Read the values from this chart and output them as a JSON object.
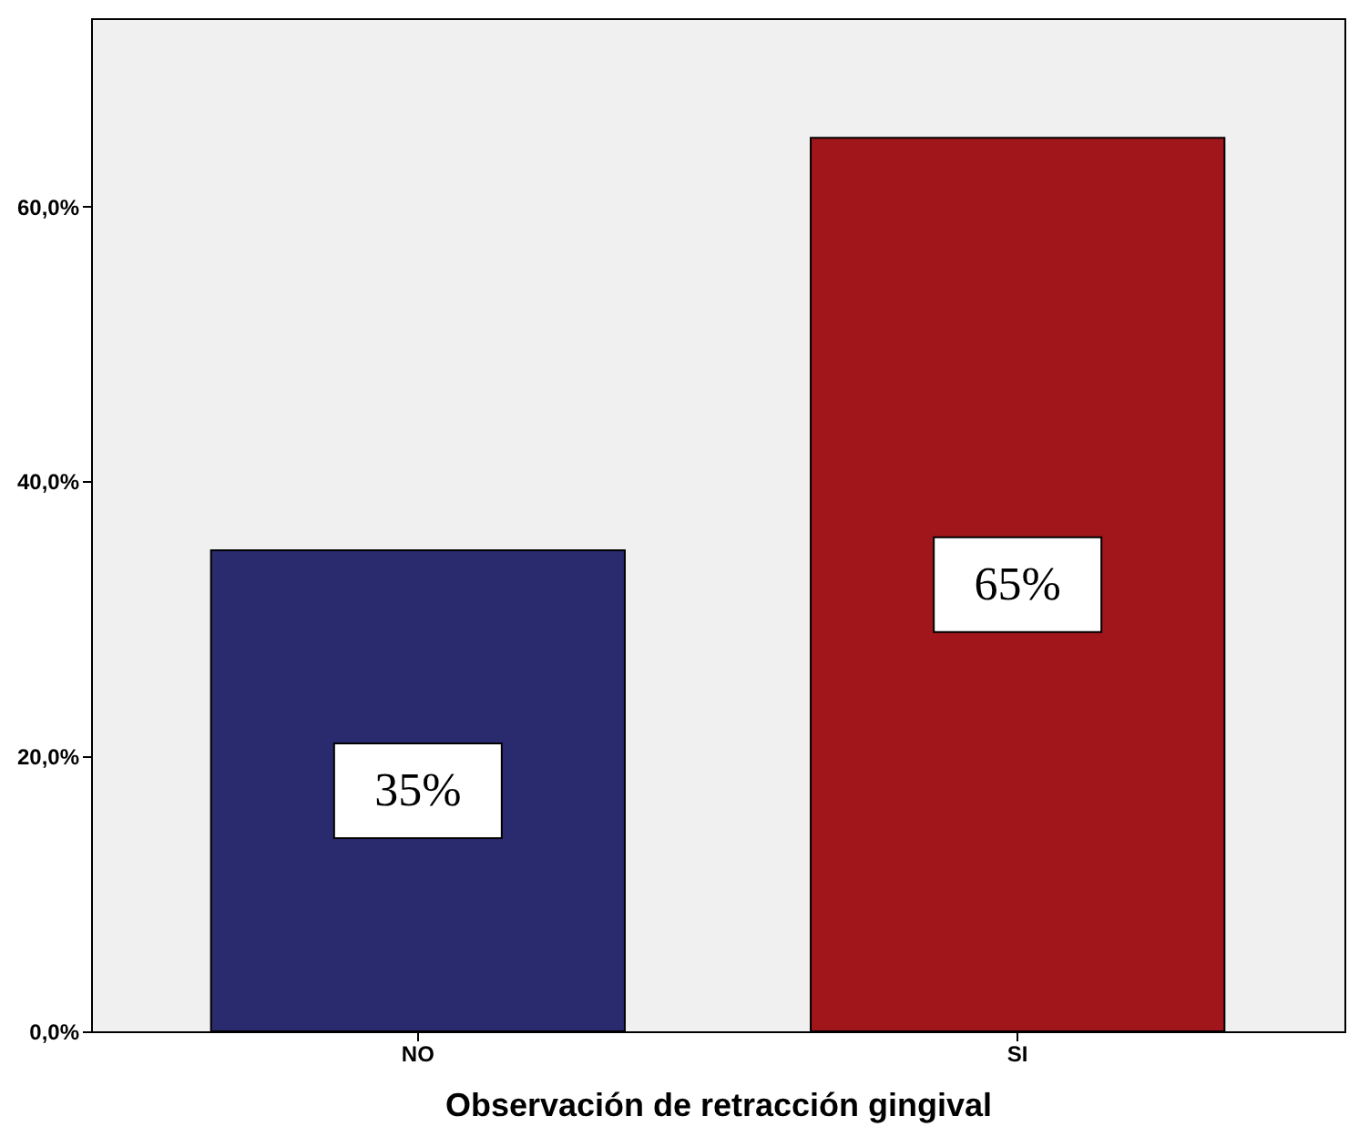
{
  "chart_data": {
    "type": "bar",
    "xlabel": "Observación de retracción gingival",
    "categories": [
      "NO",
      "SI"
    ],
    "values": [
      35,
      65
    ],
    "colors": [
      "#2a2a6e",
      "#a0161b"
    ],
    "value_labels": [
      "35%",
      "65%"
    ],
    "ylim": [
      0,
      73.7
    ],
    "yticks": [
      {
        "value": 0,
        "label": "0,0%"
      },
      {
        "value": 20,
        "label": "20,0%"
      },
      {
        "value": 40,
        "label": "40,0%"
      },
      {
        "value": 60,
        "label": "60,0%"
      }
    ],
    "legend": false
  }
}
